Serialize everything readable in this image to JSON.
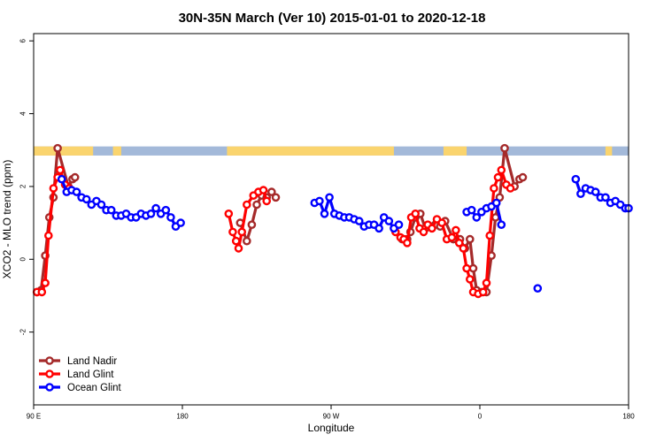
{
  "chart_data": {
    "type": "line",
    "title": "30N-35N March (Ver 10)   2015-01-01 to 2020-12-18",
    "xlabel": "Longitude",
    "ylabel": "XCO2 - MLO trend (ppm)",
    "xlim": [
      90,
      450
    ],
    "ylim": [
      -4,
      6.2
    ],
    "xticks": [
      {
        "value": 90,
        "label": "90 E"
      },
      {
        "value": 180,
        "label": "180"
      },
      {
        "value": 270,
        "label": "90 W"
      },
      {
        "value": 360,
        "label": "0"
      },
      {
        "value": 450,
        "label": "180"
      }
    ],
    "yticks": [
      {
        "value": -2,
        "label": "-2"
      },
      {
        "value": 0,
        "label": "0"
      },
      {
        "value": 2,
        "label": "2"
      },
      {
        "value": 4,
        "label": "4"
      },
      {
        "value": 6,
        "label": "6"
      }
    ],
    "legend": {
      "position": "bottom-left"
    },
    "surface_band": {
      "y_range": [
        2.85,
        3.1
      ],
      "ocean_color": "#a3b9d9",
      "land_color": "#fad46e",
      "land_segments": [
        [
          90,
          126
        ],
        [
          138,
          143
        ],
        [
          207,
          308
        ],
        [
          338,
          352
        ],
        [
          436,
          440
        ]
      ]
    },
    "series": [
      {
        "name": "Land Nadir",
        "color": "#a52a2a",
        "points": [
          [
            92,
            -0.9
          ],
          [
            94.5,
            -0.85
          ],
          [
            97,
            0.1
          ],
          [
            99.5,
            1.15
          ],
          [
            102,
            1.7
          ],
          [
            104.5,
            3.05
          ],
          [
            111,
            2.0
          ],
          [
            113.5,
            2.2
          ],
          [
            115,
            2.25
          ],
          [
            215,
            1.0
          ],
          [
            219,
            0.5
          ],
          [
            222,
            0.95
          ],
          [
            225,
            1.5
          ],
          [
            228,
            1.75
          ],
          [
            231,
            1.7
          ],
          [
            234,
            1.85
          ],
          [
            236.5,
            1.7
          ],
          [
            313,
            0.55
          ],
          [
            316,
            0.55
          ],
          [
            318,
            0.75
          ],
          [
            321,
            1.15
          ],
          [
            324,
            1.25
          ],
          [
            327,
            0.85
          ],
          [
            330,
            0.9
          ],
          [
            333,
            0.95
          ],
          [
            336,
            0.9
          ],
          [
            339,
            1.05
          ],
          [
            344,
            0.55
          ],
          [
            348,
            0.55
          ],
          [
            351,
            0.3
          ],
          [
            354,
            0.55
          ],
          [
            356,
            -0.25
          ],
          [
            358,
            -0.85
          ],
          [
            361,
            -0.9
          ],
          [
            364,
            -0.9
          ],
          [
            367,
            0.1
          ],
          [
            369.5,
            1.15
          ],
          [
            372,
            1.7
          ],
          [
            375,
            3.05
          ],
          [
            381,
            2.0
          ],
          [
            384,
            2.2
          ],
          [
            386,
            2.25
          ]
        ]
      },
      {
        "name": "Land Glint",
        "color": "#ff0000",
        "points": [
          [
            92,
            -0.9
          ],
          [
            95,
            -0.9
          ],
          [
            97,
            -0.65
          ],
          [
            99,
            0.65
          ],
          [
            102,
            1.95
          ],
          [
            104.5,
            2.25
          ],
          [
            106,
            2.45
          ],
          [
            109,
            2.05
          ],
          [
            111.5,
            1.95
          ],
          [
            208,
            1.25
          ],
          [
            210.5,
            0.75
          ],
          [
            212.5,
            0.5
          ],
          [
            214,
            0.3
          ],
          [
            216,
            0.75
          ],
          [
            219,
            1.5
          ],
          [
            223,
            1.75
          ],
          [
            226,
            1.85
          ],
          [
            229,
            1.9
          ],
          [
            231,
            1.6
          ],
          [
            309,
            0.75
          ],
          [
            312,
            0.6
          ],
          [
            314,
            0.55
          ],
          [
            316,
            0.45
          ],
          [
            318.5,
            1.15
          ],
          [
            321,
            1.25
          ],
          [
            323.5,
            0.85
          ],
          [
            326,
            0.75
          ],
          [
            328.5,
            0.95
          ],
          [
            331,
            0.85
          ],
          [
            334,
            1.1
          ],
          [
            337,
            1.0
          ],
          [
            340,
            0.55
          ],
          [
            343,
            0.6
          ],
          [
            345.5,
            0.8
          ],
          [
            347.5,
            0.45
          ],
          [
            350,
            0.3
          ],
          [
            352,
            -0.25
          ],
          [
            354,
            -0.55
          ],
          [
            356,
            -0.9
          ],
          [
            359,
            -0.95
          ],
          [
            362,
            -0.9
          ],
          [
            364,
            -0.65
          ],
          [
            366,
            0.65
          ],
          [
            368.5,
            1.95
          ],
          [
            371,
            2.25
          ],
          [
            373,
            2.45
          ],
          [
            376,
            2.05
          ],
          [
            378.5,
            1.95
          ]
        ]
      },
      {
        "name": "Ocean Glint",
        "color": "#0000ff",
        "points": [
          [
            107,
            2.2
          ],
          [
            110,
            1.85
          ],
          [
            113,
            1.9
          ],
          [
            116,
            1.85
          ],
          [
            119,
            1.7
          ],
          [
            122,
            1.65
          ],
          [
            125,
            1.5
          ],
          [
            128,
            1.6
          ],
          [
            131,
            1.5
          ],
          [
            134,
            1.35
          ],
          [
            137,
            1.35
          ],
          [
            140,
            1.2
          ],
          [
            143,
            1.2
          ],
          [
            146,
            1.25
          ],
          [
            149,
            1.15
          ],
          [
            152,
            1.15
          ],
          [
            155,
            1.25
          ],
          [
            158,
            1.2
          ],
          [
            161,
            1.25
          ],
          [
            164,
            1.4
          ],
          [
            167,
            1.25
          ],
          [
            170,
            1.35
          ],
          [
            173,
            1.15
          ],
          [
            176,
            0.9
          ],
          [
            179,
            1.0
          ],
          [
            260,
            1.55
          ],
          [
            263,
            1.6
          ],
          [
            266,
            1.25
          ],
          [
            269,
            1.7
          ],
          [
            272,
            1.25
          ],
          [
            275,
            1.2
          ],
          [
            278,
            1.15
          ],
          [
            281,
            1.15
          ],
          [
            284,
            1.1
          ],
          [
            287,
            1.05
          ],
          [
            290,
            0.9
          ],
          [
            293,
            0.95
          ],
          [
            296,
            0.95
          ],
          [
            299,
            0.85
          ],
          [
            302,
            1.15
          ],
          [
            305,
            1.05
          ],
          [
            308,
            0.85
          ],
          [
            311,
            0.95
          ],
          [
            352,
            1.3
          ],
          [
            355,
            1.35
          ],
          [
            358,
            1.15
          ],
          [
            361,
            1.3
          ],
          [
            364,
            1.4
          ],
          [
            367,
            1.45
          ],
          [
            370,
            1.55
          ],
          [
            373,
            0.95
          ],
          [
            395,
            -0.8
          ],
          [
            418,
            2.2
          ],
          [
            421,
            1.8
          ],
          [
            424,
            1.95
          ],
          [
            427,
            1.9
          ],
          [
            430,
            1.85
          ],
          [
            433,
            1.7
          ],
          [
            436,
            1.7
          ],
          [
            439,
            1.55
          ],
          [
            442,
            1.6
          ],
          [
            445,
            1.5
          ],
          [
            448,
            1.4
          ],
          [
            450,
            1.4
          ]
        ]
      }
    ]
  }
}
